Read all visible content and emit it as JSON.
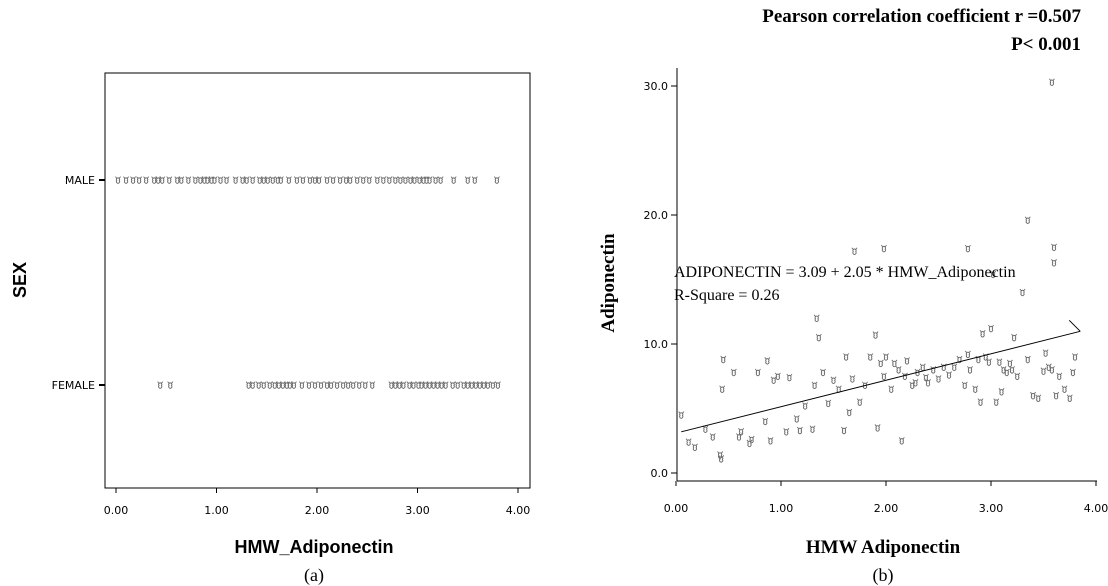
{
  "chart_data": [
    {
      "type": "scatter",
      "caption": "(a)",
      "title": "",
      "xlabel": "HMW_Adiponectin",
      "ylabel": "SEX",
      "xlim": [
        0,
        4
      ],
      "x_ticks": [
        "0.00",
        "1.00",
        "2.00",
        "3.00",
        "4.00"
      ],
      "categories": [
        "MALE",
        "FEMALE"
      ],
      "grid": false,
      "series": [
        {
          "name": "MALE",
          "x": [
            0.02,
            0.1,
            0.17,
            0.23,
            0.3,
            0.38,
            0.42,
            0.46,
            0.53,
            0.61,
            0.65,
            0.72,
            0.79,
            0.84,
            0.88,
            0.91,
            0.95,
            0.98,
            1.04,
            1.1,
            1.19,
            1.26,
            1.3,
            1.36,
            1.43,
            1.47,
            1.51,
            1.56,
            1.61,
            1.64,
            1.72,
            1.8,
            1.86,
            1.93,
            1.98,
            2.02,
            2.1,
            2.16,
            2.23,
            2.29,
            2.33,
            2.4,
            2.46,
            2.52,
            2.6,
            2.66,
            2.72,
            2.78,
            2.83,
            2.88,
            2.93,
            2.97,
            3.02,
            3.06,
            3.09,
            3.12,
            3.18,
            3.23,
            3.36,
            3.5,
            3.57,
            3.79
          ]
        },
        {
          "name": "FEMALE",
          "x": [
            0.44,
            0.54,
            1.32,
            1.36,
            1.42,
            1.47,
            1.53,
            1.58,
            1.62,
            1.66,
            1.7,
            1.73,
            1.77,
            1.85,
            1.92,
            1.98,
            2.04,
            2.1,
            2.14,
            2.2,
            2.26,
            2.31,
            2.36,
            2.42,
            2.48,
            2.55,
            2.74,
            2.78,
            2.82,
            2.86,
            2.92,
            2.96,
            3.01,
            3.04,
            3.08,
            3.12,
            3.16,
            3.2,
            3.24,
            3.28,
            3.35,
            3.4,
            3.46,
            3.5,
            3.54,
            3.58,
            3.62,
            3.66,
            3.7,
            3.75,
            3.8
          ]
        }
      ]
    },
    {
      "type": "scatter",
      "caption": "(b)",
      "title": "Pearson correlation coefficient r =0.507",
      "subtitle": "P< 0.001",
      "xlabel": "HMW Adiponectin",
      "ylabel": "Adiponectin",
      "xlim": [
        0,
        4
      ],
      "ylim": [
        -0.5,
        31
      ],
      "x_ticks": [
        "0.00",
        "1.00",
        "2.00",
        "3.00",
        "4.00"
      ],
      "y_ticks": [
        "0.0",
        "10.0",
        "20.0",
        "30.0"
      ],
      "grid": false,
      "regression": {
        "equation": "ADIPONECTIN = 3.09 + 2.05 * HMW_Adiponectin",
        "r_square_label": "R-Square = 0.26",
        "intercept": 3.09,
        "slope": 2.05,
        "x_range": [
          0.05,
          3.85
        ]
      },
      "series": [
        {
          "name": "",
          "x": [
            0.05,
            0.12,
            0.18,
            0.28,
            0.35,
            0.42,
            0.43,
            0.44,
            0.55,
            0.6,
            0.62,
            0.7,
            0.72,
            0.78,
            0.85,
            0.87,
            0.9,
            0.93,
            0.97,
            1.05,
            1.08,
            1.15,
            1.18,
            1.23,
            1.3,
            1.32,
            1.34,
            1.36,
            1.4,
            1.45,
            1.5,
            1.55,
            1.6,
            1.62,
            1.65,
            1.68,
            1.7,
            1.75,
            1.8,
            1.85,
            1.9,
            1.92,
            1.95,
            1.98,
            2.0,
            2.05,
            2.08,
            2.12,
            2.15,
            2.18,
            2.2,
            2.25,
            2.28,
            2.3,
            2.35,
            2.38,
            2.4,
            2.45,
            2.5,
            2.55,
            2.6,
            2.65,
            2.7,
            2.75,
            2.78,
            2.8,
            2.85,
            2.88,
            2.9,
            2.92,
            2.95,
            2.98,
            3.0,
            3.02,
            3.05,
            3.08,
            3.1,
            3.12,
            3.15,
            3.18,
            3.2,
            3.22,
            3.25,
            3.3,
            3.35,
            3.4,
            3.45,
            3.5,
            3.52,
            3.55,
            3.58,
            3.6,
            3.6,
            3.62,
            3.65,
            3.7,
            3.75,
            3.78,
            3.8,
            0.45,
            1.98,
            2.78,
            3.58,
            3.35
          ],
          "y": [
            4.5,
            2.4,
            2.0,
            3.4,
            2.8,
            1.4,
            1.1,
            6.5,
            7.8,
            2.8,
            3.2,
            2.3,
            2.6,
            7.8,
            4.0,
            8.7,
            2.5,
            7.2,
            7.5,
            3.2,
            7.4,
            4.2,
            3.3,
            5.2,
            3.4,
            6.8,
            12.0,
            10.5,
            7.8,
            5.4,
            7.2,
            6.5,
            3.3,
            9.0,
            4.7,
            7.3,
            17.2,
            5.5,
            6.8,
            9.0,
            10.7,
            3.5,
            8.5,
            17.4,
            9.0,
            6.5,
            8.5,
            8.0,
            2.5,
            7.5,
            8.7,
            6.8,
            7.0,
            7.8,
            8.2,
            7.4,
            7.0,
            8.0,
            7.3,
            8.2,
            7.6,
            8.2,
            8.8,
            6.8,
            9.2,
            8.0,
            6.5,
            8.8,
            5.5,
            10.8,
            9.0,
            8.6,
            11.2,
            15.4,
            5.5,
            8.6,
            6.3,
            8.0,
            7.8,
            8.5,
            8.0,
            10.5,
            7.5,
            14.0,
            8.8,
            6.0,
            5.8,
            7.9,
            9.3,
            8.2,
            8.0,
            16.3,
            17.5,
            6.0,
            7.5,
            6.5,
            5.8,
            7.8,
            9.0,
            8.8,
            7.5,
            17.4,
            30.3,
            19.6
          ]
        }
      ]
    }
  ]
}
